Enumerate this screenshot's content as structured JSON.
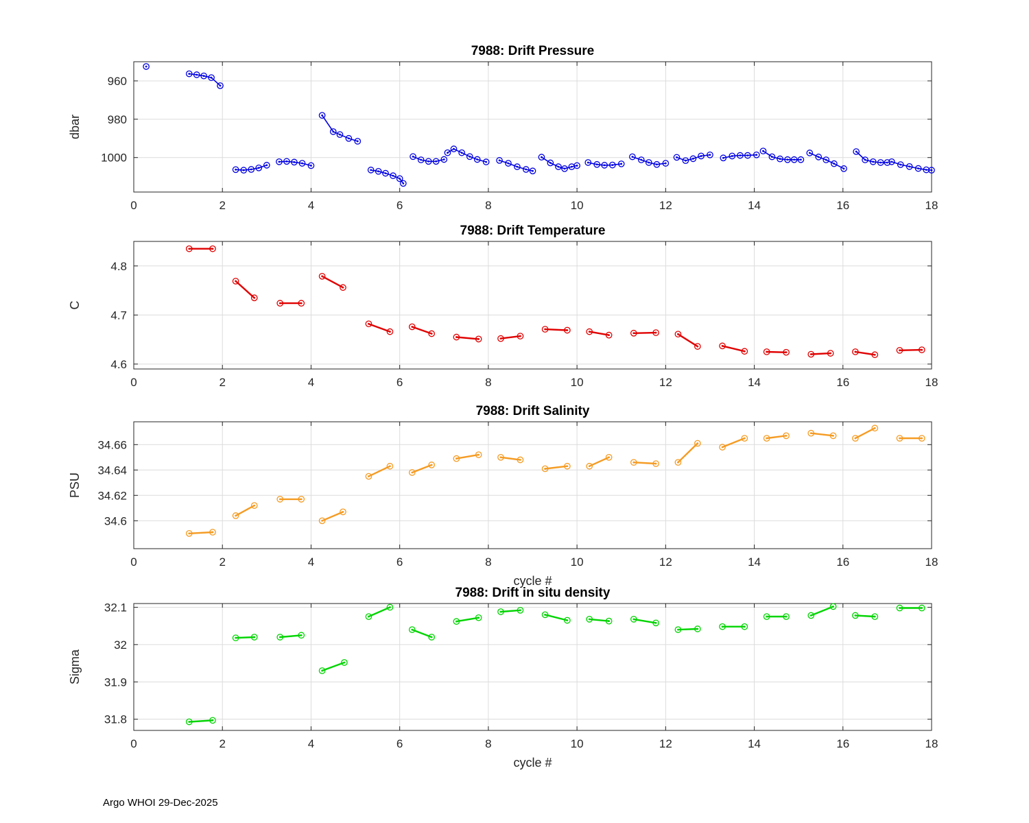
{
  "footer": {
    "text": "Argo WHOI 29-Dec-2025"
  },
  "chart_data": [
    {
      "type": "line",
      "title": "7988: Drift Pressure",
      "ylabel": "dbar",
      "xlabel": "",
      "xlim": [
        0,
        18
      ],
      "xticks": [
        0,
        2,
        4,
        6,
        8,
        10,
        12,
        14,
        16,
        18
      ],
      "ylim": [
        950,
        1018
      ],
      "y_reversed": true,
      "yticks": [
        960,
        980,
        1000
      ],
      "ytick_labels": [
        "960",
        "980",
        "1000"
      ],
      "grid": true,
      "color": "#0000e1",
      "segments": [
        [
          [
            0.28,
            952.5
          ]
        ],
        [
          [
            1.25,
            956.3
          ],
          [
            1.42,
            956.8
          ],
          [
            1.58,
            957.4
          ],
          [
            1.75,
            958.3
          ],
          [
            1.95,
            962.5
          ]
        ],
        [
          [
            2.3,
            1006.3
          ],
          [
            2.48,
            1006.6
          ],
          [
            2.65,
            1006.2
          ],
          [
            2.82,
            1005.4
          ],
          [
            3.0,
            1004.0
          ]
        ],
        [
          [
            3.28,
            1002.2
          ],
          [
            3.45,
            1002.0
          ],
          [
            3.62,
            1002.4
          ],
          [
            3.8,
            1003.0
          ],
          [
            4.0,
            1004.2
          ]
        ],
        [
          [
            4.25,
            978.0
          ],
          [
            4.5,
            986.5
          ],
          [
            4.65,
            988.0
          ],
          [
            4.85,
            990.0
          ],
          [
            5.05,
            991.5
          ]
        ],
        [
          [
            5.35,
            1006.5
          ],
          [
            5.52,
            1007.2
          ],
          [
            5.68,
            1008.2
          ],
          [
            5.85,
            1009.5
          ],
          [
            6.0,
            1011.0
          ],
          [
            6.08,
            1013.5
          ]
        ],
        [
          [
            6.3,
            999.5
          ],
          [
            6.48,
            1001.2
          ],
          [
            6.65,
            1002.0
          ],
          [
            6.82,
            1002.0
          ],
          [
            7.0,
            1001.0
          ]
        ],
        [
          [
            7.08,
            997.5
          ],
          [
            7.22,
            995.5
          ],
          [
            7.4,
            997.5
          ],
          [
            7.58,
            999.5
          ],
          [
            7.75,
            1001.0
          ],
          [
            7.95,
            1002.3
          ]
        ],
        [
          [
            8.25,
            1001.5
          ],
          [
            8.45,
            1003.0
          ],
          [
            8.65,
            1004.8
          ],
          [
            8.85,
            1006.2
          ],
          [
            9.0,
            1007.0
          ]
        ],
        [
          [
            9.2,
            999.8
          ],
          [
            9.4,
            1002.8
          ],
          [
            9.58,
            1004.8
          ],
          [
            9.72,
            1005.8
          ],
          [
            9.88,
            1004.8
          ],
          [
            10.0,
            1004.2
          ]
        ],
        [
          [
            10.25,
            1002.6
          ],
          [
            10.45,
            1003.6
          ],
          [
            10.62,
            1004.0
          ],
          [
            10.8,
            1003.9
          ],
          [
            11.0,
            1003.3
          ]
        ],
        [
          [
            11.25,
            999.6
          ],
          [
            11.45,
            1001.2
          ],
          [
            11.62,
            1002.6
          ],
          [
            11.8,
            1003.6
          ],
          [
            12.0,
            1003.0
          ]
        ],
        [
          [
            12.25,
            999.9
          ],
          [
            12.45,
            1001.6
          ],
          [
            12.62,
            1000.6
          ],
          [
            12.8,
            999.2
          ],
          [
            13.0,
            998.6
          ]
        ],
        [
          [
            13.3,
            1000.2
          ],
          [
            13.5,
            999.2
          ],
          [
            13.68,
            998.9
          ],
          [
            13.85,
            998.9
          ],
          [
            14.05,
            998.6
          ]
        ],
        [
          [
            14.2,
            996.6
          ],
          [
            14.4,
            999.6
          ],
          [
            14.58,
            1000.7
          ],
          [
            14.75,
            1001.1
          ],
          [
            14.9,
            1001.1
          ],
          [
            15.05,
            1001.1
          ]
        ],
        [
          [
            15.25,
            997.6
          ],
          [
            15.45,
            999.7
          ],
          [
            15.62,
            1001.2
          ],
          [
            15.8,
            1003.2
          ],
          [
            16.02,
            1005.8
          ]
        ],
        [
          [
            16.3,
            996.9
          ],
          [
            16.5,
            1001.2
          ],
          [
            16.68,
            1002.2
          ],
          [
            16.85,
            1002.6
          ],
          [
            17.0,
            1002.6
          ]
        ],
        [
          [
            17.1,
            1002.2
          ],
          [
            17.3,
            1003.7
          ],
          [
            17.5,
            1004.7
          ],
          [
            17.7,
            1005.7
          ],
          [
            17.88,
            1006.4
          ],
          [
            18.0,
            1006.6
          ]
        ]
      ]
    },
    {
      "type": "line",
      "title": "7988: Drift Temperature",
      "ylabel": "C",
      "xlabel": "",
      "xlim": [
        0,
        18
      ],
      "xticks": [
        0,
        2,
        4,
        6,
        8,
        10,
        12,
        14,
        16,
        18
      ],
      "ylim": [
        4.59,
        4.85
      ],
      "y_reversed": false,
      "yticks": [
        4.6,
        4.7,
        4.8
      ],
      "ytick_labels": [
        "4.6",
        "4.7",
        "4.8"
      ],
      "grid": true,
      "color": "#e00000",
      "segments": [
        [
          [
            1.25,
            4.835
          ],
          [
            1.78,
            4.835
          ]
        ],
        [
          [
            2.3,
            4.769
          ],
          [
            2.72,
            4.735
          ]
        ],
        [
          [
            3.3,
            4.724
          ],
          [
            3.78,
            4.724
          ]
        ],
        [
          [
            4.25,
            4.779
          ],
          [
            4.72,
            4.756
          ]
        ],
        [
          [
            5.3,
            4.682
          ],
          [
            5.78,
            4.666
          ]
        ],
        [
          [
            6.28,
            4.676
          ],
          [
            6.72,
            4.662
          ]
        ],
        [
          [
            7.28,
            4.655
          ],
          [
            7.78,
            4.651
          ]
        ],
        [
          [
            8.28,
            4.652
          ],
          [
            8.72,
            4.657
          ]
        ],
        [
          [
            9.28,
            4.671
          ],
          [
            9.78,
            4.669
          ]
        ],
        [
          [
            10.28,
            4.666
          ],
          [
            10.72,
            4.659
          ]
        ],
        [
          [
            11.28,
            4.663
          ],
          [
            11.78,
            4.664
          ]
        ],
        [
          [
            12.28,
            4.661
          ],
          [
            12.72,
            4.636
          ]
        ],
        [
          [
            13.28,
            4.637
          ],
          [
            13.78,
            4.626
          ]
        ],
        [
          [
            14.28,
            4.625
          ],
          [
            14.72,
            4.624
          ]
        ],
        [
          [
            15.28,
            4.62
          ],
          [
            15.72,
            4.622
          ]
        ],
        [
          [
            16.28,
            4.625
          ],
          [
            16.72,
            4.619
          ]
        ],
        [
          [
            17.28,
            4.628
          ],
          [
            17.78,
            4.629
          ]
        ]
      ]
    },
    {
      "type": "line",
      "title": "7988: Drift Salinity",
      "ylabel": "PSU",
      "xlabel": "cycle #",
      "xlim": [
        0,
        18
      ],
      "xticks": [
        0,
        2,
        4,
        6,
        8,
        10,
        12,
        14,
        16,
        18
      ],
      "ylim": [
        34.578,
        34.678
      ],
      "y_reversed": false,
      "yticks": [
        34.6,
        34.62,
        34.64,
        34.66
      ],
      "ytick_labels": [
        "34.6",
        "34.62",
        "34.64",
        "34.66"
      ],
      "grid": true,
      "color": "#f59b22",
      "segments": [
        [
          [
            1.25,
            34.59
          ],
          [
            1.78,
            34.591
          ]
        ],
        [
          [
            2.3,
            34.604
          ],
          [
            2.72,
            34.612
          ]
        ],
        [
          [
            3.3,
            34.617
          ],
          [
            3.78,
            34.617
          ]
        ],
        [
          [
            4.25,
            34.6
          ],
          [
            4.72,
            34.607
          ]
        ],
        [
          [
            5.3,
            34.635
          ],
          [
            5.78,
            34.643
          ]
        ],
        [
          [
            6.28,
            34.638
          ],
          [
            6.72,
            34.644
          ]
        ],
        [
          [
            7.28,
            34.649
          ],
          [
            7.78,
            34.652
          ]
        ],
        [
          [
            8.28,
            34.65
          ],
          [
            8.72,
            34.648
          ]
        ],
        [
          [
            9.28,
            34.641
          ],
          [
            9.78,
            34.643
          ]
        ],
        [
          [
            10.28,
            34.643
          ],
          [
            10.72,
            34.65
          ]
        ],
        [
          [
            11.28,
            34.646
          ],
          [
            11.78,
            34.645
          ]
        ],
        [
          [
            12.28,
            34.646
          ],
          [
            12.72,
            34.661
          ]
        ],
        [
          [
            13.28,
            34.658
          ],
          [
            13.78,
            34.665
          ]
        ],
        [
          [
            14.28,
            34.665
          ],
          [
            14.72,
            34.667
          ]
        ],
        [
          [
            15.28,
            34.669
          ],
          [
            15.78,
            34.667
          ]
        ],
        [
          [
            16.28,
            34.665
          ],
          [
            16.72,
            34.673
          ]
        ],
        [
          [
            17.28,
            34.665
          ],
          [
            17.78,
            34.665
          ]
        ]
      ]
    },
    {
      "type": "line",
      "title": "7988: Drift in situ density",
      "ylabel": "Sigma",
      "xlabel": "cycle #",
      "xlim": [
        0,
        18
      ],
      "xticks": [
        0,
        2,
        4,
        6,
        8,
        10,
        12,
        14,
        16,
        18
      ],
      "ylim": [
        31.77,
        32.11
      ],
      "y_reversed": false,
      "yticks": [
        31.8,
        31.9,
        32,
        32.1
      ],
      "ytick_labels": [
        "31.8",
        "31.9",
        "32",
        "32.1"
      ],
      "grid": true,
      "color": "#00d400",
      "segments": [
        [
          [
            1.25,
            31.793
          ],
          [
            1.78,
            31.797
          ]
        ],
        [
          [
            2.3,
            32.018
          ],
          [
            2.72,
            32.02
          ]
        ],
        [
          [
            3.3,
            32.02
          ],
          [
            3.78,
            32.025
          ]
        ],
        [
          [
            4.25,
            31.93
          ],
          [
            4.75,
            31.952
          ]
        ],
        [
          [
            5.3,
            32.075
          ],
          [
            5.78,
            32.1
          ]
        ],
        [
          [
            6.28,
            32.04
          ],
          [
            6.72,
            32.02
          ]
        ],
        [
          [
            7.28,
            32.062
          ],
          [
            7.78,
            32.072
          ]
        ],
        [
          [
            8.28,
            32.088
          ],
          [
            8.72,
            32.092
          ]
        ],
        [
          [
            9.28,
            32.08
          ],
          [
            9.78,
            32.065
          ]
        ],
        [
          [
            10.28,
            32.068
          ],
          [
            10.72,
            32.063
          ]
        ],
        [
          [
            11.28,
            32.068
          ],
          [
            11.78,
            32.058
          ]
        ],
        [
          [
            12.28,
            32.04
          ],
          [
            12.72,
            32.042
          ]
        ],
        [
          [
            13.28,
            32.048
          ],
          [
            13.78,
            32.048
          ]
        ],
        [
          [
            14.28,
            32.075
          ],
          [
            14.72,
            32.075
          ]
        ],
        [
          [
            15.28,
            32.078
          ],
          [
            15.78,
            32.102
          ]
        ],
        [
          [
            16.28,
            32.078
          ],
          [
            16.72,
            32.075
          ]
        ],
        [
          [
            17.28,
            32.098
          ],
          [
            17.78,
            32.098
          ]
        ]
      ]
    }
  ]
}
